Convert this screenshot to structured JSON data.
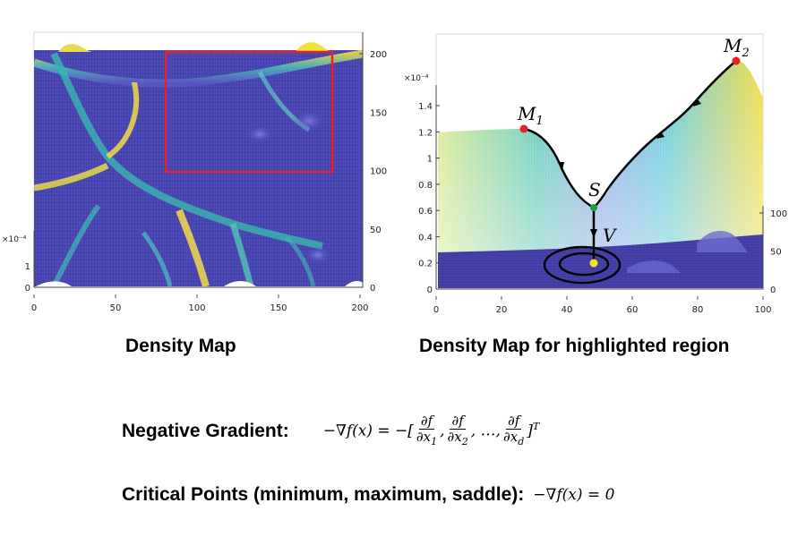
{
  "left_plot": {
    "x_ticks": [
      "0",
      "50",
      "100",
      "150",
      "200"
    ],
    "right_ticks": [
      "0",
      "50",
      "100",
      "150",
      "200"
    ],
    "z_ticks": [
      "0",
      "1"
    ],
    "z_multiplier": "×10⁻⁴",
    "highlight_color": "#e8222a"
  },
  "right_plot": {
    "x_ticks": [
      "0",
      "20",
      "40",
      "60",
      "80",
      "100"
    ],
    "z_ticks": [
      "0",
      "0.2",
      "0.4",
      "0.6",
      "0.8",
      "1",
      "1.2",
      "1.4"
    ],
    "z_multiplier": "×10⁻⁴",
    "right_ticks": [
      "0",
      "50",
      "100"
    ],
    "points": {
      "M1": {
        "letter": "M",
        "sub": "1",
        "color": "#e8222a"
      },
      "M2": {
        "letter": "M",
        "sub": "2",
        "color": "#e8222a"
      },
      "S": {
        "letter": "S",
        "sub": "",
        "color": "#1e9e3a"
      },
      "V": {
        "letter": "V",
        "sub": "",
        "color": "#f4e61e"
      }
    }
  },
  "captions": {
    "left": "Density Map",
    "right": "Density Map for highlighted region"
  },
  "formulas": {
    "gradient_label": "Negative Gradient:",
    "critical_label": "Critical Points (minimum, maximum, saddle):",
    "grad_lhs": "−∇f(x) = −[",
    "grad_num": "∂f",
    "grad_den1": "∂x",
    "grad_den1_sub": "1",
    "grad_den2": "∂x",
    "grad_den2_sub": "2",
    "grad_mid": ", …,",
    "grad_den3": "∂x",
    "grad_den3_sub": "d",
    "grad_end": "]",
    "grad_sup": "T",
    "critical_expr": "−∇f(x) = 0"
  },
  "colors": {
    "deep_blue": "#3d3a9e",
    "cyan": "#21b8b0",
    "yellow": "#f3df3a"
  }
}
